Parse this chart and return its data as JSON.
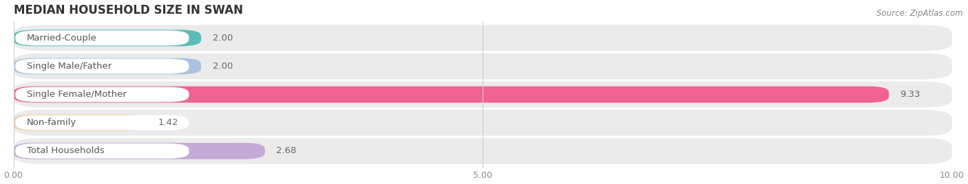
{
  "title": "MEDIAN HOUSEHOLD SIZE IN SWAN",
  "source": "Source: ZipAtlas.com",
  "categories": [
    "Married-Couple",
    "Single Male/Father",
    "Single Female/Mother",
    "Non-family",
    "Total Households"
  ],
  "values": [
    2.0,
    2.0,
    9.33,
    1.42,
    2.68
  ],
  "bar_colors": [
    "#5bbcb8",
    "#a8c4e0",
    "#f06292",
    "#f5c9a0",
    "#c5aad8"
  ],
  "xlim": [
    0,
    10.0
  ],
  "xticks": [
    0.0,
    5.0,
    10.0
  ],
  "xtick_labels": [
    "0.00",
    "5.00",
    "10.00"
  ],
  "title_fontsize": 12,
  "label_fontsize": 9.5,
  "value_fontsize": 9.5,
  "background_color": "#ffffff",
  "bar_height": 0.58,
  "row_bg_color": "#ebebeb",
  "label_bg_color": "#ffffff",
  "label_text_color": "#555555",
  "value_text_color": "#666666"
}
